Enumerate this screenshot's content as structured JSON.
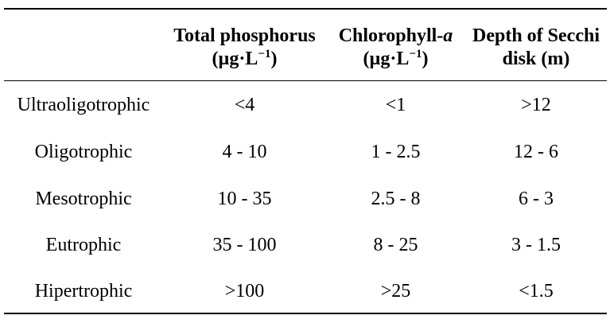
{
  "table": {
    "headers": [
      {
        "line1": "",
        "line2": ""
      },
      {
        "line1": "Total phosphorus",
        "line2_pre": "(µg·L",
        "line2_sup": "−1",
        "line2_post": ")"
      },
      {
        "line1_pre": "Chlorophyll-",
        "line1_ital": "a",
        "line2_pre": "(µg·L",
        "line2_sup": "−1",
        "line2_post": ")"
      },
      {
        "line1": "Depth of Secchi",
        "line2": "disk (m)"
      }
    ],
    "rows": [
      [
        "Ultraoligotrophic",
        "<4",
        "<1",
        ">12"
      ],
      [
        "Oligotrophic",
        "4 - 10",
        "1 - 2.5",
        "12 - 6"
      ],
      [
        "Mesotrophic",
        "10 - 35",
        "2.5 - 8",
        "6 - 3"
      ],
      [
        "Eutrophic",
        "35 - 100",
        "8 - 25",
        "3 - 1.5"
      ],
      [
        "Hipertrophic",
        ">100",
        ">25",
        "<1.5"
      ]
    ]
  }
}
